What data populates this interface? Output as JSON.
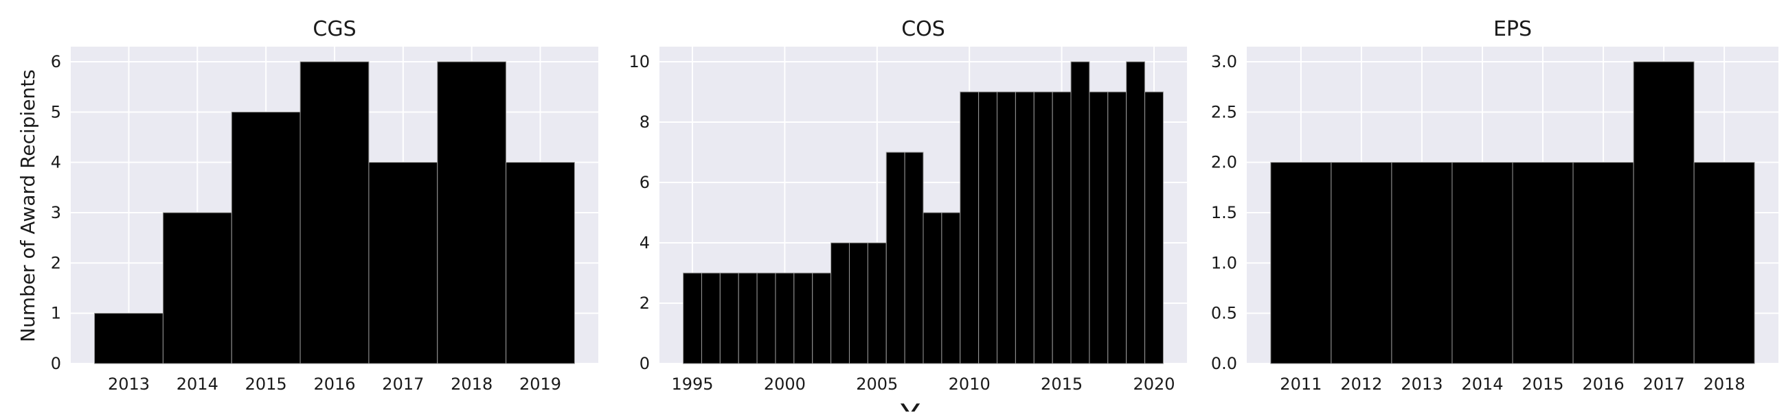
{
  "figure": {
    "ylabel": "Number of Award Recipients",
    "xlabel": "Y"
  },
  "colors": {
    "plot_background": "#EAEAF2",
    "grid": "#FFFFFF",
    "bar_fill": "#000000",
    "bar_edge": "#9a9a9a"
  },
  "chart_data": [
    {
      "type": "bar",
      "title": "CGS",
      "categories": [
        "2013",
        "2014",
        "2015",
        "2016",
        "2017",
        "2018",
        "2019"
      ],
      "values": [
        1,
        3,
        5,
        6,
        4,
        6,
        4
      ],
      "xticks": [
        "2013",
        "2014",
        "2015",
        "2016",
        "2017",
        "2018",
        "2019"
      ],
      "yticks": [
        "0",
        "1",
        "2",
        "3",
        "4",
        "5",
        "6"
      ],
      "ylim": [
        0,
        6.3
      ],
      "grid": true
    },
    {
      "type": "bar",
      "title": "COS",
      "categories": [
        "1995",
        "1996",
        "1997",
        "1998",
        "1999",
        "2000",
        "2001",
        "2002",
        "2003",
        "2004",
        "2005",
        "2006",
        "2007",
        "2008",
        "2009",
        "2010",
        "2011",
        "2012",
        "2013",
        "2014",
        "2015",
        "2016",
        "2017",
        "2018",
        "2019",
        "2020"
      ],
      "values": [
        3,
        3,
        3,
        3,
        3,
        3,
        3,
        3,
        4,
        4,
        4,
        7,
        7,
        5,
        5,
        9,
        9,
        9,
        9,
        9,
        9,
        10,
        9,
        9,
        10,
        9
      ],
      "xticks": [
        "1995",
        "2000",
        "2005",
        "2010",
        "2015",
        "2020"
      ],
      "yticks": [
        "0",
        "2",
        "4",
        "6",
        "8",
        "10"
      ],
      "ylim": [
        0,
        10.5
      ],
      "grid": true
    },
    {
      "type": "bar",
      "title": "EPS",
      "categories": [
        "2011",
        "2012",
        "2013",
        "2014",
        "2015",
        "2016",
        "2017",
        "2018"
      ],
      "values": [
        2,
        2,
        2,
        2,
        2,
        2,
        3,
        2
      ],
      "xticks": [
        "2011",
        "2012",
        "2013",
        "2014",
        "2015",
        "2016",
        "2017",
        "2018"
      ],
      "yticks": [
        "0.0",
        "0.5",
        "1.0",
        "1.5",
        "2.0",
        "2.5",
        "3.0"
      ],
      "ylim": [
        0,
        3.15
      ],
      "grid": true
    }
  ]
}
